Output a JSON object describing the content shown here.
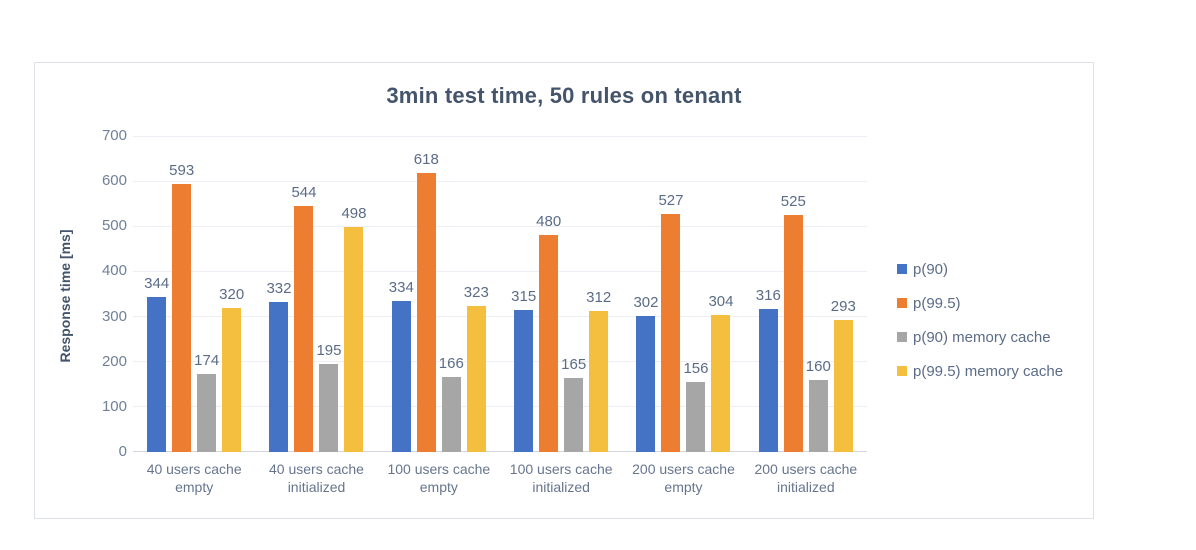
{
  "chart_data": {
    "type": "bar",
    "title": "3min test time, 50 rules on tenant",
    "ylabel": "Response time [ms]",
    "xlabel": "",
    "ylim": [
      0,
      700
    ],
    "yticks": [
      0,
      100,
      200,
      300,
      400,
      500,
      600,
      700
    ],
    "grid": true,
    "legend_position": "right",
    "data_labels": true,
    "categories": [
      "40 users cache empty",
      "40 users cache initialized",
      "100 users cache empty",
      "100 users cache initialized",
      "200 users cache empty",
      "200 users cache initialized"
    ],
    "series": [
      {
        "name": "p(90)",
        "color": "#4472c4",
        "values": [
          344,
          332,
          334,
          315,
          302,
          316
        ]
      },
      {
        "name": "p(99.5)",
        "color": "#ed7d31",
        "values": [
          593,
          544,
          618,
          480,
          527,
          525
        ]
      },
      {
        "name": "p(90) memory cache",
        "color": "#a6a6a6",
        "values": [
          174,
          195,
          166,
          165,
          156,
          160
        ]
      },
      {
        "name": "p(99.5) memory cache",
        "color": "#f4be3e",
        "values": [
          320,
          498,
          323,
          312,
          304,
          293
        ]
      }
    ],
    "colors": {
      "title_text": "#44546a",
      "axis_text": "#708197",
      "data_label_text": "#5b6c87",
      "gridline": "#edeff4",
      "axis_line": "#d2d5dd",
      "chart_border": "#dfe1e8",
      "background": "#ffffff"
    }
  }
}
